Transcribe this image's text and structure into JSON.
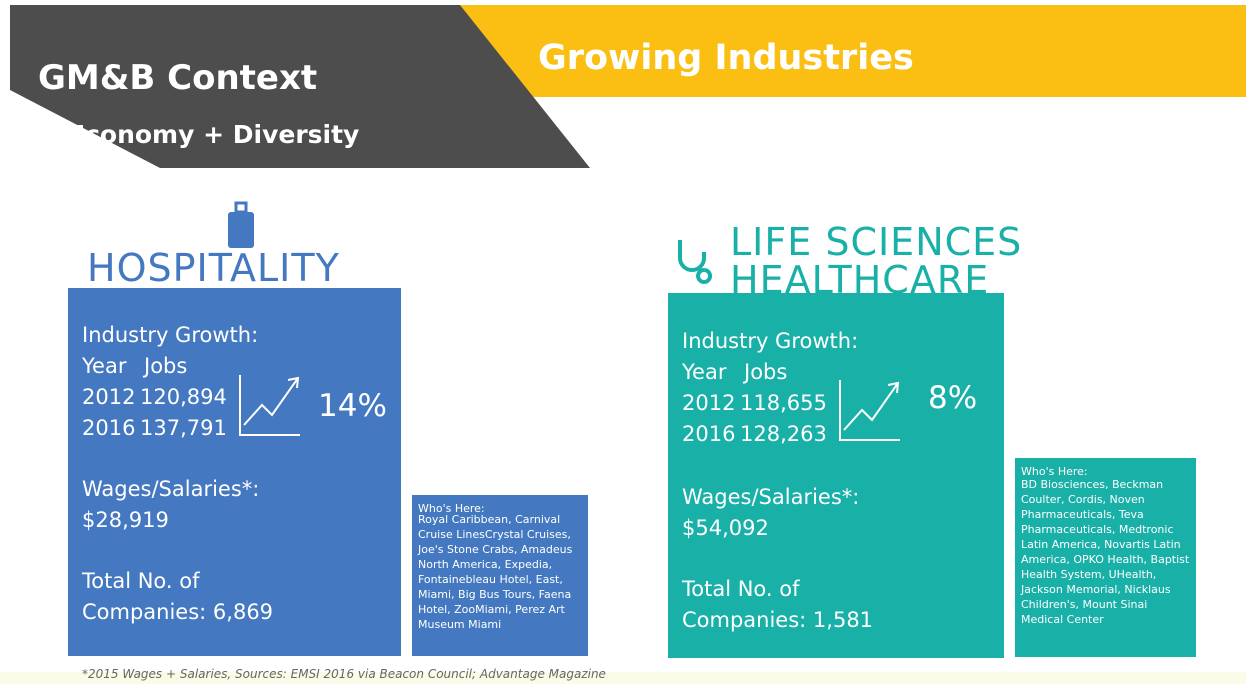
{
  "header": {
    "title": "GM&B Context",
    "subtitle": "Economy + Diversity",
    "banner": "Growing Industries"
  },
  "industries": [
    {
      "name": [
        "HOSPITALITY"
      ],
      "growth_label": "Industry Growth:",
      "columns": [
        "Year",
        "Jobs"
      ],
      "rows": [
        [
          "2012",
          "120,894"
        ],
        [
          "2016",
          "137,791"
        ]
      ],
      "growth": "14%",
      "wages_label": "Wages/Salaries*:",
      "wages": "$28,919",
      "companies": [
        "Total No. of",
        "Companies: 6,869"
      ],
      "whos_here_label": "Who's Here:",
      "whos_here": "Royal Caribbean, Carnival Cruise LinesCrystal Cruises, Joe's Stone Crabs, Amadeus North America, Expedia, Fontainebleau Hotel, East, Miami, Big Bus Tours, Faena Hotel, ZooMiami, Perez Art Museum Miami"
    },
    {
      "name": [
        "LIFE SCIENCES",
        "HEALTHCARE"
      ],
      "growth_label": "Industry Growth:",
      "columns": [
        "Year",
        "Jobs"
      ],
      "rows": [
        [
          "2012",
          "118,655"
        ],
        [
          "2016",
          "128,263"
        ]
      ],
      "growth": "8%",
      "wages_label": "Wages/Salaries*:",
      "wages": "$54,092",
      "companies": [
        "Total No. of",
        "Companies: 1,581"
      ],
      "whos_here_label": "Who's Here:",
      "whos_here": "BD Biosciences, Beckman Coulter, Cordis, Noven Pharmaceuticals, Teva Pharmaceuticals, Medtronic Latin America, Novartis Latin America, OPKO Health, Baptist Health System, UHealth, Jackson Memorial, Nicklaus Children's, Mount Sinai Medical Center"
    }
  ],
  "footnote": "*2015 Wages + Salaries, Sources: EMSI 2016 via Beacon Council; Advantage Magazine"
}
